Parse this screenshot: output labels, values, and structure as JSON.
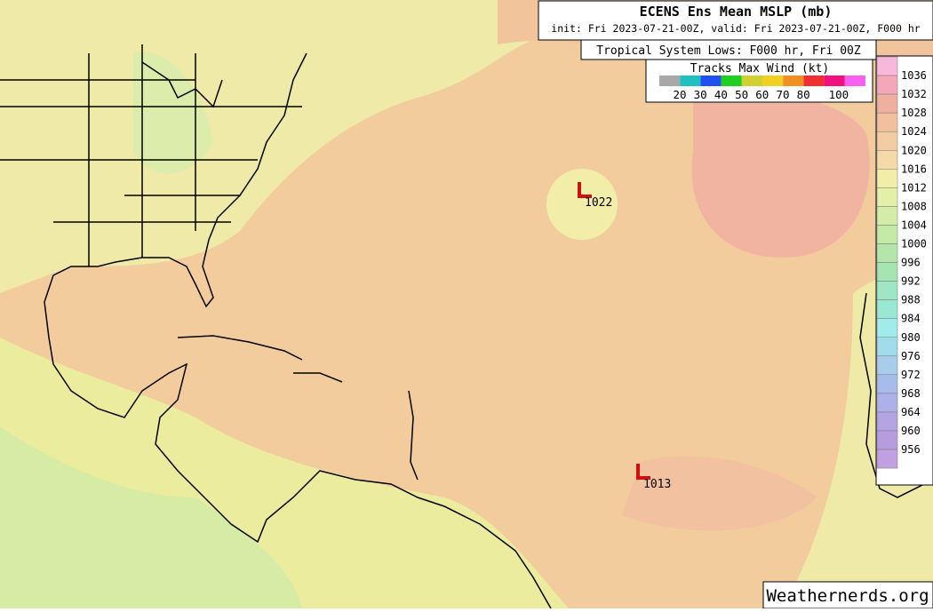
{
  "header": {
    "title": "ECENS Ens Mean MSLP (mb)",
    "init": "init: Fri 2023-07-21-00Z, valid: Fri 2023-07-21-00Z, F000 hr",
    "subtitle": "Tropical System Lows: F000 hr, Fri 00Z"
  },
  "wind_legend": {
    "title": "Tracks Max Wind (kt)",
    "colors": [
      "#a8a8a8",
      "#20c0c0",
      "#2050f0",
      "#20d020",
      "#d0d030",
      "#f0d020",
      "#f09020",
      "#f03030",
      "#f01080",
      "#f860f0"
    ],
    "labels": [
      "20",
      "30",
      "40",
      "50",
      "60",
      "70",
      "80",
      "100"
    ]
  },
  "colorbar": {
    "labels": [
      "1036",
      "1032",
      "1028",
      "1024",
      "1020",
      "1016",
      "1012",
      "1008",
      "1004",
      "1000",
      "996",
      "992",
      "988",
      "984",
      "980",
      "976",
      "972",
      "968",
      "964",
      "960",
      "956"
    ],
    "colors": [
      "#f8b8dc",
      "#f2a8b8",
      "#f0b0a0",
      "#f2c09e",
      "#f4cca4",
      "#f4daa8",
      "#f2eeaa",
      "#e4f0a8",
      "#d2eea6",
      "#c4eaa8",
      "#b4e6ac",
      "#a6e4b4",
      "#9ee6c4",
      "#98e8d4",
      "#a0ecec",
      "#a0dcec",
      "#a8ccec",
      "#a8bcec",
      "#aeb0ea",
      "#b4a4e4",
      "#b89ce0",
      "#c0a0e0"
    ]
  },
  "lows": [
    {
      "label": "1022"
    },
    {
      "label": "1013"
    }
  ],
  "watermark": "Weathernerds.org"
}
